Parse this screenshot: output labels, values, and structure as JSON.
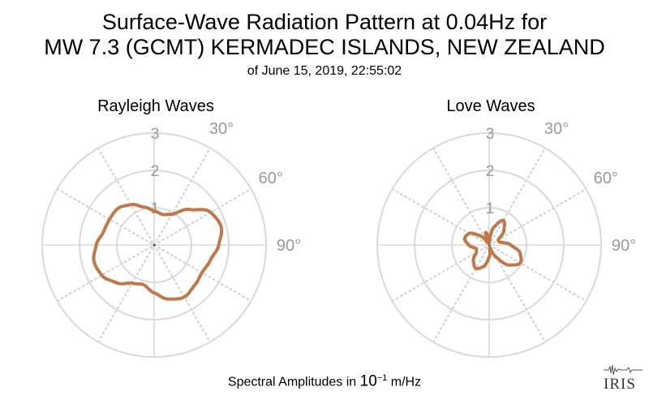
{
  "header": {
    "title_line1": "Surface-Wave Radiation Pattern at 0.04Hz for",
    "title_line2": "MW 7.3 (GCMT) KERMADEC ISLANDS, NEW ZEALAND",
    "subtitle": "of June 15, 2019, 22:55:02"
  },
  "footer": {
    "label_prefix": "Spectral Amplitudes in ",
    "label_base": "10",
    "label_exponent": "−1",
    "label_unit": " m/Hz"
  },
  "logo": {
    "text": "IRIS"
  },
  "colors": {
    "pattern": "#c0784a",
    "grid_solid": "#d9d9d9",
    "grid_dotted": "#cccccc",
    "tick_label": "#999999"
  },
  "chart_data": [
    {
      "type": "polar-line",
      "title": "Rayleigh Waves",
      "radial_ticks": [
        1,
        2,
        3
      ],
      "rlim": [
        0,
        3
      ],
      "angular_ticks_deg": [
        30,
        60,
        90
      ],
      "angular_tick_labels": [
        "30°",
        "60°",
        "90°"
      ],
      "angle_convention": "clockwise from north (up)",
      "angular_gridlines_every_deg": 30,
      "pattern": {
        "theta_deg": [
          0,
          15,
          30,
          45,
          60,
          75,
          90,
          105,
          120,
          135,
          150,
          165,
          180,
          195,
          210,
          225,
          240,
          255,
          270,
          285,
          300,
          315,
          330,
          345,
          360
        ],
        "r": [
          0.92,
          0.85,
          0.95,
          1.35,
          1.75,
          1.86,
          1.73,
          1.56,
          1.48,
          1.53,
          1.61,
          1.5,
          1.28,
          1.1,
          1.18,
          1.43,
          1.62,
          1.67,
          1.55,
          1.4,
          1.38,
          1.38,
          1.25,
          1.05,
          0.92
        ]
      }
    },
    {
      "type": "polar-line",
      "title": "Love Waves",
      "radial_ticks": [
        1,
        2,
        3
      ],
      "rlim": [
        0,
        3
      ],
      "angular_ticks_deg": [
        30,
        60,
        90
      ],
      "angular_tick_labels": [
        "30°",
        "60°",
        "90°"
      ],
      "angle_convention": "clockwise from north (up)",
      "angular_gridlines_every_deg": 30,
      "pattern": {
        "theta_deg": [
          0,
          15,
          30,
          45,
          60,
          75,
          90,
          105,
          120,
          135,
          150,
          165,
          180,
          195,
          210,
          225,
          240,
          255,
          270,
          285,
          300,
          315,
          330,
          345,
          360
        ],
        "r": [
          0.05,
          0.5,
          0.76,
          0.56,
          0.28,
          0.3,
          0.58,
          0.86,
          0.96,
          0.76,
          0.38,
          0.06,
          0.32,
          0.6,
          0.72,
          0.6,
          0.4,
          0.36,
          0.55,
          0.68,
          0.62,
          0.36,
          0.08,
          0.35,
          0.05
        ]
      }
    }
  ]
}
